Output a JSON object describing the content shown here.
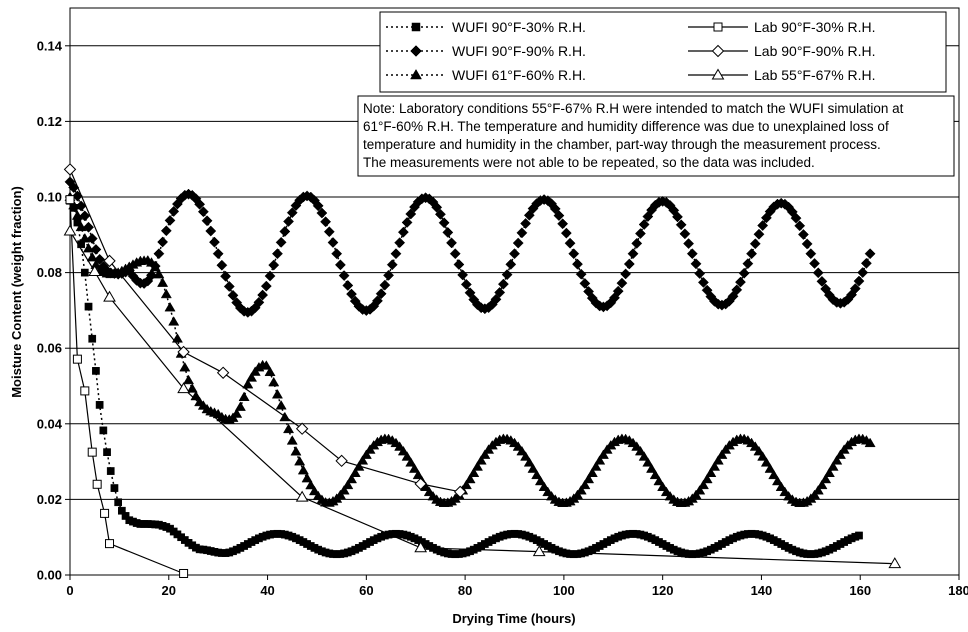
{
  "chart_data": {
    "type": "line",
    "xlabel": "Drying Time (hours)",
    "ylabel": "Moisture Content (weight fraction)",
    "xlim": [
      0,
      180
    ],
    "ylim": [
      0,
      0.15
    ],
    "x_ticks": [
      "0",
      "20",
      "40",
      "60",
      "80",
      "100",
      "120",
      "140",
      "160",
      "180"
    ],
    "y_ticks": [
      "0.00",
      "0.02",
      "0.04",
      "0.06",
      "0.08",
      "0.10",
      "0.12",
      "0.14"
    ],
    "grid": "horizontal",
    "legend_position": "top-right",
    "series": [
      {
        "name": "WUFI 90°F-30% R.H.",
        "style": "dotted",
        "marker": "filled-square",
        "model": {
          "kind": "decay-then-wave",
          "start": [
            0,
            0.099
          ],
          "decay_points": [
            [
              0,
              0.099
            ],
            [
              1,
              0.0965
            ],
            [
              2,
              0.09
            ],
            [
              3,
              0.08
            ],
            [
              4,
              0.068
            ],
            [
              5,
              0.057
            ],
            [
              6,
              0.045
            ],
            [
              7,
              0.036
            ],
            [
              8,
              0.029
            ],
            [
              9,
              0.023
            ],
            [
              10,
              0.018
            ],
            [
              11,
              0.016
            ],
            [
              12,
              0.0145
            ],
            [
              14,
              0.0135
            ],
            [
              16,
              0.0135
            ],
            [
              18,
              0.0133
            ],
            [
              20,
              0.0125
            ],
            [
              22,
              0.0105
            ],
            [
              24,
              0.0085
            ],
            [
              26,
              0.0068
            ]
          ],
          "center": 0.0082,
          "amplitude": 0.0027,
          "period": 24,
          "phase_peak": 42,
          "end": 160,
          "step": 0.75
        }
      },
      {
        "name": "Lab 90°F-30% R.H.",
        "style": "solid",
        "marker": "open-square",
        "points": [
          [
            0,
            0.0993
          ],
          [
            1.5,
            0.0571
          ],
          [
            3,
            0.0487
          ],
          [
            4.5,
            0.0325
          ],
          [
            5.5,
            0.024
          ],
          [
            7,
            0.0163
          ],
          [
            8,
            0.0083
          ],
          [
            23,
            0.0004
          ]
        ]
      },
      {
        "name": "WUFI 90°F-90% R.H.",
        "style": "dotted",
        "marker": "filled-diamond",
        "model": {
          "kind": "decay-then-wave",
          "decay_points": [
            [
              0,
              0.104
            ],
            [
              1,
              0.102
            ],
            [
              2,
              0.0985
            ],
            [
              3,
              0.095
            ],
            [
              4,
              0.091
            ],
            [
              5,
              0.087
            ],
            [
              6,
              0.0835
            ],
            [
              7,
              0.081
            ],
            [
              8,
              0.08
            ],
            [
              10,
              0.0795
            ],
            [
              12,
              0.0805
            ]
          ],
          "center": 0.085,
          "amplitude": 0.016,
          "period": 24,
          "phase_peak": 24,
          "amp_decay": 2e-05,
          "end": 162,
          "step": 0.75
        }
      },
      {
        "name": "Lab 90°F-90% R.H.",
        "style": "solid",
        "marker": "open-diamond",
        "points": [
          [
            0,
            0.1073
          ],
          [
            8,
            0.0831
          ],
          [
            23,
            0.059
          ],
          [
            31,
            0.0535
          ],
          [
            47,
            0.0387
          ],
          [
            55,
            0.0302
          ],
          [
            71,
            0.0241
          ],
          [
            79,
            0.022
          ]
        ]
      },
      {
        "name": "WUFI 61°F-60% R.H.",
        "style": "dotted",
        "marker": "filled-triangle",
        "model": {
          "kind": "decay-then-wave",
          "decay_points": [
            [
              0,
              0.1
            ],
            [
              1,
              0.097
            ],
            [
              2,
              0.093
            ],
            [
              3,
              0.089
            ],
            [
              4,
              0.0855
            ],
            [
              5,
              0.0825
            ],
            [
              6,
              0.0805
            ],
            [
              8,
              0.0795
            ],
            [
              10,
              0.08
            ],
            [
              12,
              0.0815
            ],
            [
              14,
              0.083
            ],
            [
              16,
              0.0832
            ],
            [
              17,
              0.082
            ],
            [
              18,
              0.0795
            ],
            [
              19,
              0.0765
            ],
            [
              20,
              0.072
            ],
            [
              21,
              0.067
            ],
            [
              22,
              0.061
            ],
            [
              23,
              0.056
            ],
            [
              24,
              0.0515
            ],
            [
              25,
              0.0485
            ],
            [
              26,
              0.046
            ],
            [
              28,
              0.0435
            ],
            [
              30,
              0.0425
            ]
          ],
          "center": 0.0275,
          "amplitude": 0.0085,
          "period": 24,
          "phase_peak": 64,
          "extra_hump": [
            40,
            0.0505
          ],
          "end": 162,
          "step": 0.75
        }
      },
      {
        "name": "Lab 55°F-67% R.H.",
        "style": "solid",
        "marker": "open-triangle",
        "points": [
          [
            0,
            0.091
          ],
          [
            5,
            0.0803
          ],
          [
            8,
            0.0735
          ],
          [
            23,
            0.0493
          ],
          [
            47,
            0.0206
          ],
          [
            71,
            0.0072
          ],
          [
            95,
            0.0062
          ],
          [
            167,
            0.003
          ]
        ]
      }
    ],
    "annotations": [
      "Note: Laboratory conditions 55°F-67% R.H were intended to match the WUFI simulation at",
      "61°F-60% R.H.  The temperature and humidity difference was due to unexplained loss of",
      "temperature and humidity in the chamber, part-way through the measurement process.",
      "The measurements were not able to be repeated, so the data was included."
    ]
  }
}
